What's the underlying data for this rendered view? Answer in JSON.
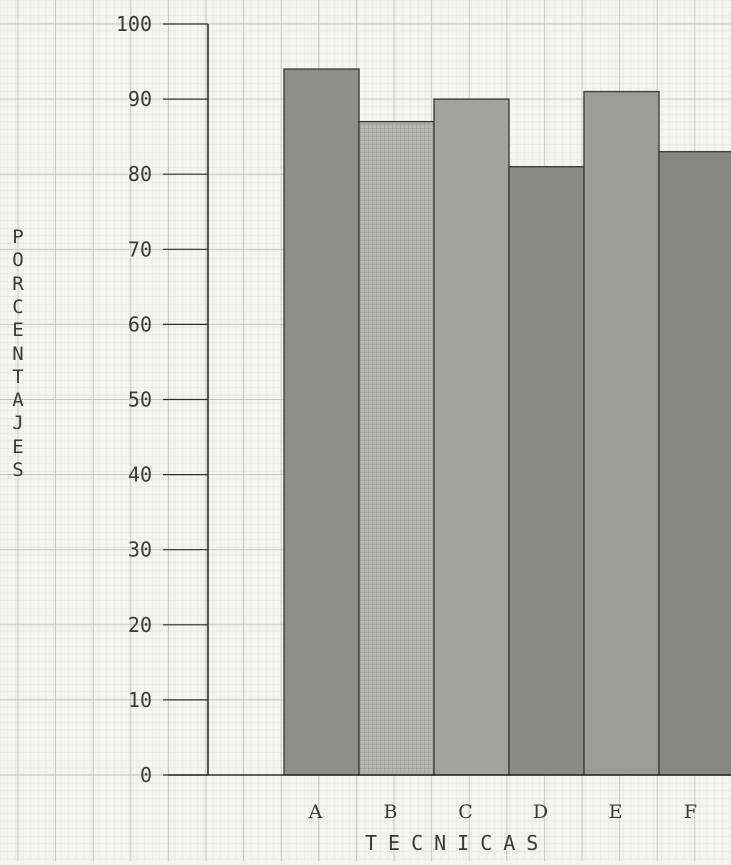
{
  "chart_data": {
    "type": "bar",
    "categories": [
      "A",
      "B",
      "C",
      "D",
      "E",
      "F"
    ],
    "values": [
      94,
      87,
      90,
      81,
      91,
      83
    ],
    "xlabel": "TECNICAS",
    "ylabel": "PORCENTAJES",
    "ylim": [
      0,
      100
    ],
    "yticks": [
      "0",
      "10",
      "20",
      "30",
      "40",
      "50",
      "60",
      "70",
      "80",
      "90",
      "100"
    ],
    "grid": true,
    "bar_colors": [
      "#8e8e8b",
      "#b3b3ae",
      "#a2a29e",
      "#8a8a87",
      "#9b9b97",
      "#878784"
    ]
  }
}
